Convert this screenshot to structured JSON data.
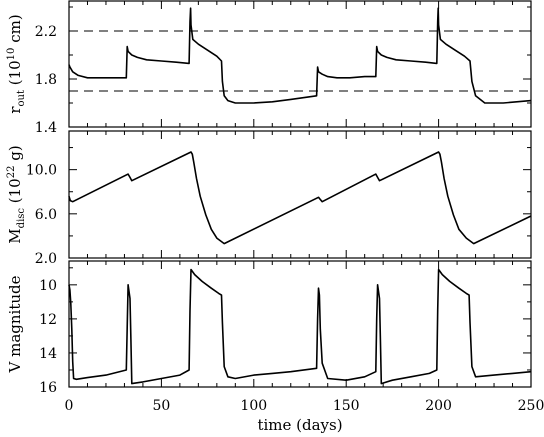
{
  "figure": {
    "xlabel": "time (days)"
  },
  "chart_data": [
    {
      "type": "line",
      "ylabel_main": "r",
      "ylabel_sub": "out",
      "ylabel_unit": "(10",
      "ylabel_exp": "10",
      "ylabel_unit_tail": " cm)",
      "xlim": [
        0,
        250
      ],
      "ylim": [
        1.4,
        2.45
      ],
      "y_ticks_labeled": [
        "1.4",
        "1.8",
        "2.2"
      ],
      "y_tick_values": [
        1.4,
        1.8,
        2.2
      ],
      "reference_lines": [
        2.2,
        1.7
      ],
      "series": [
        {
          "x": [
            0,
            0.5,
            2,
            5,
            10,
            20,
            31,
            31.5,
            32,
            34,
            37,
            42,
            50,
            58,
            65,
            65.5,
            65.8,
            66,
            67,
            70,
            75,
            80,
            82.5,
            83,
            84,
            86,
            90,
            100,
            110,
            120,
            134,
            134.5,
            135,
            137,
            140,
            145,
            152,
            160,
            166,
            166.5,
            167,
            169,
            172,
            177,
            185,
            193,
            199,
            199.5,
            199.8,
            200,
            201,
            204,
            209,
            214,
            217,
            218,
            220,
            225,
            235,
            250
          ],
          "y": [
            1.92,
            1.9,
            1.86,
            1.83,
            1.81,
            1.81,
            1.81,
            2.07,
            2.03,
            2.0,
            1.98,
            1.96,
            1.95,
            1.94,
            1.93,
            2.28,
            2.39,
            2.25,
            2.13,
            2.09,
            2.04,
            1.99,
            1.95,
            1.78,
            1.66,
            1.62,
            1.6,
            1.6,
            1.61,
            1.63,
            1.66,
            1.9,
            1.86,
            1.84,
            1.82,
            1.81,
            1.81,
            1.82,
            1.82,
            2.07,
            2.03,
            2.0,
            1.98,
            1.96,
            1.95,
            1.94,
            1.93,
            2.28,
            2.39,
            2.25,
            2.13,
            2.09,
            2.04,
            1.99,
            1.95,
            1.78,
            1.66,
            1.6,
            1.6,
            1.62
          ]
        }
      ]
    },
    {
      "type": "line",
      "ylabel_main": "M",
      "ylabel_sub": "disc",
      "ylabel_unit": "(10",
      "ylabel_exp": "22",
      "ylabel_unit_tail": " g)",
      "xlim": [
        0,
        250
      ],
      "ylim": [
        2.0,
        13.5
      ],
      "y_ticks_labeled": [
        "2.0",
        "6.0",
        "10.0"
      ],
      "y_tick_values": [
        2.0,
        6.0,
        10.0
      ],
      "series": [
        {
          "x": [
            0,
            0.7,
            2,
            32,
            33,
            34,
            66,
            66.7,
            67.5,
            69,
            71,
            74,
            77,
            80,
            84,
            135,
            136,
            137,
            166,
            167,
            168,
            200,
            200.7,
            201.5,
            203,
            205,
            208,
            211,
            215,
            219,
            250
          ],
          "y": [
            7.6,
            7.2,
            7.1,
            9.6,
            9.3,
            9.0,
            11.6,
            11.4,
            10.7,
            9.2,
            7.6,
            5.9,
            4.6,
            3.8,
            3.3,
            7.5,
            7.3,
            7.1,
            9.6,
            9.3,
            9.0,
            11.6,
            11.4,
            10.7,
            9.2,
            7.6,
            5.9,
            4.6,
            3.8,
            3.3,
            5.8
          ]
        }
      ]
    },
    {
      "type": "line",
      "ylabel_main": "V magnitude",
      "xlim": [
        0,
        250
      ],
      "ylim": [
        16.0,
        8.6
      ],
      "y_ticks_labeled": [
        "10",
        "12",
        "14",
        "16"
      ],
      "y_tick_values": [
        10,
        12,
        14,
        16
      ],
      "series": [
        {
          "x": [
            0,
            0.5,
            1,
            1.5,
            2,
            2.5,
            4,
            10,
            20,
            31,
            31.5,
            32,
            33,
            33.5,
            34,
            40,
            50,
            60,
            65,
            65.5,
            66,
            68,
            72,
            77,
            81,
            82.5,
            83,
            84,
            86,
            90,
            100,
            110,
            120,
            134,
            134.5,
            135,
            135.5,
            136,
            137,
            140,
            150,
            160,
            166,
            166.5,
            167,
            168,
            168.5,
            169,
            175,
            185,
            195,
            199,
            199.5,
            200,
            202,
            206,
            211,
            215,
            216.5,
            217,
            218,
            220,
            230,
            240,
            250
          ],
          "y": [
            10.0,
            10.3,
            11.1,
            12.6,
            14.5,
            15.5,
            15.55,
            15.45,
            15.3,
            15.0,
            12.5,
            10.0,
            10.8,
            13.2,
            15.8,
            15.7,
            15.5,
            15.3,
            15.0,
            11.5,
            9.1,
            9.4,
            9.8,
            10.2,
            10.5,
            10.6,
            12.2,
            14.8,
            15.4,
            15.5,
            15.3,
            15.2,
            15.1,
            14.9,
            12.0,
            10.2,
            10.6,
            12.6,
            14.6,
            15.5,
            15.6,
            15.4,
            15.1,
            12.0,
            10.0,
            10.8,
            13.2,
            15.8,
            15.6,
            15.4,
            15.2,
            15.0,
            11.5,
            9.1,
            9.4,
            9.8,
            10.2,
            10.5,
            10.6,
            12.2,
            14.8,
            15.4,
            15.3,
            15.2,
            15.1
          ]
        }
      ]
    }
  ],
  "x_ticks_labeled": [
    "0",
    "50",
    "100",
    "150",
    "200",
    "250"
  ],
  "x_tick_values": [
    0,
    50,
    100,
    150,
    200,
    250
  ]
}
